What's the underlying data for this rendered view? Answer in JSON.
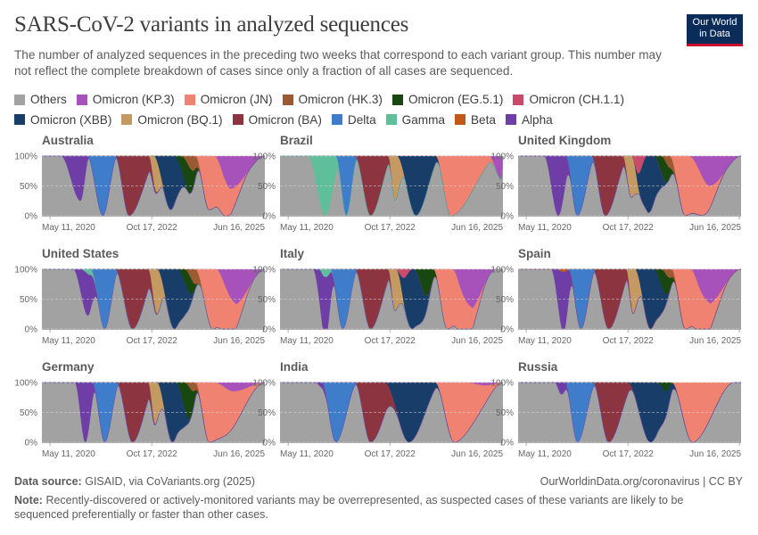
{
  "title": "SARS-CoV-2 variants in analyzed sequences",
  "subtitle": "The number of analyzed sequences in the preceding two weeks that correspond to each variant group. This number may not reflect the complete breakdown of cases since only a fraction of all cases are sequenced.",
  "logo": {
    "line1": "Our World",
    "line2": "in Data"
  },
  "legend": [
    {
      "name": "Others",
      "color": "#a2a2a2"
    },
    {
      "name": "Omicron (KP.3)",
      "color": "#a652ba"
    },
    {
      "name": "Omicron (JN)",
      "color": "#ef8270"
    },
    {
      "name": "Omicron (HK.3)",
      "color": "#9c5a33"
    },
    {
      "name": "Omicron (EG.5.1)",
      "color": "#18470f"
    },
    {
      "name": "Omicron (CH.1.1)",
      "color": "#c94a6a"
    },
    {
      "name": "Omicron (XBB)",
      "color": "#183d68"
    },
    {
      "name": "Omicron (BQ.1)",
      "color": "#c59a62"
    },
    {
      "name": "Omicron (BA)",
      "color": "#8c343f"
    },
    {
      "name": "Delta",
      "color": "#3f7cc9"
    },
    {
      "name": "Gamma",
      "color": "#5fbf9a"
    },
    {
      "name": "Beta",
      "color": "#c05917"
    },
    {
      "name": "Alpha",
      "color": "#6e3ea6"
    }
  ],
  "chart_data": {
    "type": "area",
    "stacked": "percent",
    "yticks": [
      "100%",
      "50%",
      "0%"
    ],
    "xticks": [
      "May 11, 2020",
      "Oct 17, 2022",
      "Jun 16, 2025"
    ],
    "xdomain": [
      "2020-03-01",
      "2025-07-01"
    ],
    "ylim": [
      0,
      100
    ],
    "series_order": [
      "Omicron (KP.3)",
      "Omicron (JN)",
      "Omicron (HK.3)",
      "Omicron (EG.5.1)",
      "Omicron (CH.1.1)",
      "Omicron (XBB)",
      "Omicron (BQ.1)",
      "Omicron (BA)",
      "Delta",
      "Gamma",
      "Beta",
      "Alpha"
    ],
    "panels": [
      {
        "country": "Australia",
        "variants": [
          {
            "name": "Alpha",
            "start": "2020-08-15",
            "peak": "2021-02-01",
            "end": "2021-04-20",
            "share": 75
          },
          {
            "name": "Delta",
            "start": "2021-04-01",
            "peak": "2021-08-15",
            "end": "2021-12-20",
            "share": 100
          },
          {
            "name": "Omicron (BA)",
            "start": "2021-12-01",
            "peak": "2022-04-01",
            "end": "2022-12-20",
            "share": 100
          },
          {
            "name": "Omicron (BQ.1)",
            "start": "2022-09-20",
            "peak": "2022-11-20",
            "end": "2023-02-01",
            "share": 55
          },
          {
            "name": "Omicron (XBB)",
            "start": "2022-11-01",
            "peak": "2023-04-01",
            "end": "2023-09-01",
            "share": 90
          },
          {
            "name": "Omicron (EG.5.1)",
            "start": "2023-05-01",
            "peak": "2023-09-01",
            "end": "2023-12-15",
            "share": 45
          },
          {
            "name": "Omicron (HK.3)",
            "start": "2023-07-01",
            "peak": "2023-10-15",
            "end": "2023-12-31",
            "share": 25
          },
          {
            "name": "Omicron (JN)",
            "start": "2023-11-01",
            "peak": "2024-03-01",
            "end": "2025-03-01",
            "share": 90
          },
          {
            "name": "Omicron (KP.3)",
            "start": "2024-04-15",
            "peak": "2024-09-01",
            "end": "2025-07-01",
            "share": 55
          }
        ]
      },
      {
        "country": "Brazil",
        "variants": [
          {
            "name": "Gamma",
            "start": "2020-11-01",
            "peak": "2021-04-01",
            "end": "2021-08-20",
            "share": 100
          },
          {
            "name": "Delta",
            "start": "2021-07-01",
            "peak": "2021-10-01",
            "end": "2022-01-10",
            "share": 100
          },
          {
            "name": "Omicron (BA)",
            "start": "2021-12-15",
            "peak": "2022-05-01",
            "end": "2022-11-20",
            "share": 100
          },
          {
            "name": "Omicron (BQ.1)",
            "start": "2022-10-01",
            "peak": "2022-12-01",
            "end": "2023-03-01",
            "share": 75
          },
          {
            "name": "Omicron (XBB)",
            "start": "2022-12-15",
            "peak": "2023-06-01",
            "end": "2024-01-10",
            "share": 100
          },
          {
            "name": "Omicron (JN)",
            "start": "2023-11-20",
            "peak": "2024-04-01",
            "end": "2025-06-01",
            "share": 100
          },
          {
            "name": "Omicron (KP.3)",
            "start": "2025-03-01",
            "peak": "2025-06-20",
            "end": "2025-07-01",
            "share": 40
          }
        ]
      },
      {
        "country": "United Kingdom",
        "variants": [
          {
            "name": "Alpha",
            "start": "2020-10-15",
            "peak": "2021-02-15",
            "end": "2021-06-15",
            "share": 100
          },
          {
            "name": "Delta",
            "start": "2021-04-20",
            "peak": "2021-08-01",
            "end": "2022-01-10",
            "share": 100
          },
          {
            "name": "Omicron (BA)",
            "start": "2021-12-01",
            "peak": "2022-04-01",
            "end": "2022-11-01",
            "share": 100
          },
          {
            "name": "Omicron (BQ.1)",
            "start": "2022-09-01",
            "peak": "2022-11-15",
            "end": "2023-02-01",
            "share": 70
          },
          {
            "name": "Omicron (CH.1.1)",
            "start": "2022-11-15",
            "peak": "2023-01-15",
            "end": "2023-04-01",
            "share": 30
          },
          {
            "name": "Omicron (XBB)",
            "start": "2022-12-01",
            "peak": "2023-04-15",
            "end": "2023-10-01",
            "share": 95
          },
          {
            "name": "Omicron (EG.5.1)",
            "start": "2023-06-01",
            "peak": "2023-09-01",
            "end": "2023-12-01",
            "share": 35
          },
          {
            "name": "Omicron (HK.3)",
            "start": "2023-08-01",
            "peak": "2023-10-20",
            "end": "2024-01-01",
            "share": 20
          },
          {
            "name": "Omicron (JN)",
            "start": "2023-10-15",
            "peak": "2024-03-01",
            "end": "2025-03-01",
            "share": 100
          },
          {
            "name": "Omicron (KP.3)",
            "start": "2024-04-01",
            "peak": "2024-10-01",
            "end": "2025-07-01",
            "share": 50
          }
        ]
      },
      {
        "country": "United States",
        "variants": [
          {
            "name": "Alpha",
            "start": "2020-12-01",
            "peak": "2021-04-01",
            "end": "2021-07-15",
            "share": 70
          },
          {
            "name": "Gamma",
            "start": "2021-02-01",
            "peak": "2021-05-01",
            "end": "2021-07-01",
            "share": 10
          },
          {
            "name": "Delta",
            "start": "2021-05-01",
            "peak": "2021-09-01",
            "end": "2022-01-01",
            "share": 100
          },
          {
            "name": "Omicron (BA)",
            "start": "2021-12-01",
            "peak": "2022-05-01",
            "end": "2022-12-15",
            "share": 100
          },
          {
            "name": "Omicron (BQ.1)",
            "start": "2022-09-15",
            "peak": "2022-12-01",
            "end": "2023-02-20",
            "share": 75
          },
          {
            "name": "Omicron (XBB)",
            "start": "2022-12-01",
            "peak": "2023-05-01",
            "end": "2023-11-15",
            "share": 100
          },
          {
            "name": "Omicron (EG.5.1)",
            "start": "2023-06-01",
            "peak": "2023-09-01",
            "end": "2023-12-01",
            "share": 30
          },
          {
            "name": "Omicron (HK.3)",
            "start": "2023-08-01",
            "peak": "2023-11-01",
            "end": "2024-01-10",
            "share": 25
          },
          {
            "name": "Omicron (JN)",
            "start": "2023-11-01",
            "peak": "2024-04-01",
            "end": "2025-04-01",
            "share": 100
          },
          {
            "name": "Omicron (KP.3)",
            "start": "2024-05-01",
            "peak": "2024-10-01",
            "end": "2025-07-01",
            "share": 60
          }
        ]
      },
      {
        "country": "Italy",
        "variants": [
          {
            "name": "Alpha",
            "start": "2020-12-15",
            "peak": "2021-04-01",
            "end": "2021-07-01",
            "share": 100
          },
          {
            "name": "Gamma",
            "start": "2021-02-01",
            "peak": "2021-04-01",
            "end": "2021-06-15",
            "share": 15
          },
          {
            "name": "Delta",
            "start": "2021-05-15",
            "peak": "2021-09-01",
            "end": "2022-01-10",
            "share": 100
          },
          {
            "name": "Omicron (BA)",
            "start": "2021-12-15",
            "peak": "2022-05-01",
            "end": "2022-12-01",
            "share": 100
          },
          {
            "name": "Omicron (BQ.1)",
            "start": "2022-10-01",
            "peak": "2022-12-01",
            "end": "2023-03-01",
            "share": 70
          },
          {
            "name": "Omicron (CH.1.1)",
            "start": "2022-12-01",
            "peak": "2023-02-15",
            "end": "2023-05-01",
            "share": 15
          },
          {
            "name": "Omicron (XBB)",
            "start": "2022-12-15",
            "peak": "2023-05-01",
            "end": "2023-11-01",
            "share": 100
          },
          {
            "name": "Omicron (EG.5.1)",
            "start": "2023-05-15",
            "peak": "2023-09-01",
            "end": "2023-12-15",
            "share": 45
          },
          {
            "name": "Omicron (JN)",
            "start": "2023-11-01",
            "peak": "2024-03-01",
            "end": "2025-03-01",
            "share": 100
          },
          {
            "name": "Omicron (KP.3)",
            "start": "2024-04-15",
            "peak": "2024-09-01",
            "end": "2025-05-01",
            "share": 70
          }
        ]
      },
      {
        "country": "Spain",
        "variants": [
          {
            "name": "Alpha",
            "start": "2020-12-15",
            "peak": "2021-04-01",
            "end": "2021-07-01",
            "share": 100
          },
          {
            "name": "Beta",
            "start": "2021-02-01",
            "peak": "2021-04-01",
            "end": "2021-06-01",
            "share": 5
          },
          {
            "name": "Delta",
            "start": "2021-05-15",
            "peak": "2021-09-01",
            "end": "2022-01-10",
            "share": 100
          },
          {
            "name": "Omicron (BA)",
            "start": "2021-12-15",
            "peak": "2022-05-01",
            "end": "2022-12-01",
            "share": 100
          },
          {
            "name": "Omicron (BQ.1)",
            "start": "2022-10-01",
            "peak": "2022-12-01",
            "end": "2023-03-01",
            "share": 75
          },
          {
            "name": "Omicron (XBB)",
            "start": "2022-12-15",
            "peak": "2023-05-01",
            "end": "2023-11-01",
            "share": 100
          },
          {
            "name": "Omicron (EG.5.1)",
            "start": "2023-06-01",
            "peak": "2023-09-01",
            "end": "2023-12-15",
            "share": 35
          },
          {
            "name": "Omicron (HK.3)",
            "start": "2023-08-01",
            "peak": "2023-10-20",
            "end": "2024-01-01",
            "share": 15
          },
          {
            "name": "Omicron (JN)",
            "start": "2023-11-01",
            "peak": "2024-03-01",
            "end": "2025-04-01",
            "share": 100
          },
          {
            "name": "Omicron (KP.3)",
            "start": "2024-04-15",
            "peak": "2024-09-01",
            "end": "2025-07-01",
            "share": 60
          }
        ]
      },
      {
        "country": "Germany",
        "variants": [
          {
            "name": "Alpha",
            "start": "2020-12-15",
            "peak": "2021-03-15",
            "end": "2021-06-20",
            "share": 100
          },
          {
            "name": "Delta",
            "start": "2021-05-15",
            "peak": "2021-09-01",
            "end": "2022-01-10",
            "share": 100
          },
          {
            "name": "Omicron (BA)",
            "start": "2021-12-15",
            "peak": "2022-05-01",
            "end": "2022-12-01",
            "share": 100
          },
          {
            "name": "Omicron (BQ.1)",
            "start": "2022-09-15",
            "peak": "2022-11-15",
            "end": "2023-02-15",
            "share": 70
          },
          {
            "name": "Omicron (XBB)",
            "start": "2022-12-01",
            "peak": "2023-04-15",
            "end": "2023-10-01",
            "share": 100
          },
          {
            "name": "Omicron (EG.5.1)",
            "start": "2023-05-15",
            "peak": "2023-09-01",
            "end": "2023-12-01",
            "share": 55
          },
          {
            "name": "Omicron (HK.3)",
            "start": "2023-08-01",
            "peak": "2023-10-15",
            "end": "2023-12-31",
            "share": 15
          },
          {
            "name": "Omicron (JN)",
            "start": "2023-11-01",
            "peak": "2024-03-01",
            "end": "2025-07-01",
            "share": 100
          },
          {
            "name": "Omicron (KP.3)",
            "start": "2024-04-15",
            "peak": "2024-10-01",
            "end": "2025-07-01",
            "share": 15
          }
        ]
      },
      {
        "country": "India",
        "variants": [
          {
            "name": "Alpha",
            "start": "2021-01-01",
            "peak": "2021-03-15",
            "end": "2021-05-01",
            "share": 10
          },
          {
            "name": "Delta",
            "start": "2021-03-01",
            "peak": "2021-07-01",
            "end": "2022-01-10",
            "share": 100
          },
          {
            "name": "Omicron (BA)",
            "start": "2021-12-15",
            "peak": "2022-05-01",
            "end": "2023-01-15",
            "share": 100
          },
          {
            "name": "Omicron (XBB)",
            "start": "2022-09-01",
            "peak": "2023-04-01",
            "end": "2024-01-15",
            "share": 100
          },
          {
            "name": "Omicron (JN)",
            "start": "2023-11-15",
            "peak": "2024-05-01",
            "end": "2025-07-01",
            "share": 100
          },
          {
            "name": "Omicron (KP.3)",
            "start": "2024-08-01",
            "peak": "2025-02-01",
            "end": "2025-07-01",
            "share": 5
          }
        ]
      },
      {
        "country": "Russia",
        "variants": [
          {
            "name": "Alpha",
            "start": "2021-01-15",
            "peak": "2021-03-15",
            "end": "2021-06-01",
            "share": 20
          },
          {
            "name": "Delta",
            "start": "2021-04-15",
            "peak": "2021-08-01",
            "end": "2022-01-15",
            "share": 100
          },
          {
            "name": "Omicron (BA)",
            "start": "2021-12-15",
            "peak": "2022-05-01",
            "end": "2022-12-20",
            "share": 100
          },
          {
            "name": "Omicron (XBB)",
            "start": "2022-10-15",
            "peak": "2023-05-01",
            "end": "2024-01-01",
            "share": 100
          },
          {
            "name": "Omicron (EG.5.1)",
            "start": "2023-07-01",
            "peak": "2023-09-15",
            "end": "2023-11-15",
            "share": 15
          },
          {
            "name": "Omicron (JN)",
            "start": "2023-11-01",
            "peak": "2024-05-01",
            "end": "2025-05-01",
            "share": 100
          }
        ]
      }
    ]
  },
  "footer": {
    "source_label": "Data source:",
    "source_text": "GISAID, via CoVariants.org (2025)",
    "url": "OurWorldinData.org/coronavirus | CC BY",
    "note_label": "Note:",
    "note_text": "Recently-discovered or actively-monitored variants may be overrepresented, as suspected cases of these variants are likely to be sequenced preferentially or faster than other cases."
  }
}
